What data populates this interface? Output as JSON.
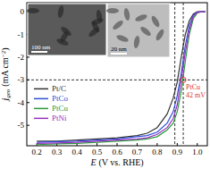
{
  "chart_data": {
    "type": "line",
    "x_label": [
      "E",
      "(V vs. RHE)"
    ],
    "y_label": [
      "j",
      "geo",
      "(mA cm",
      "−2",
      ")"
    ],
    "x": [
      0.2,
      0.3,
      0.4,
      0.5,
      0.6,
      0.7,
      0.75,
      0.8,
      0.85,
      0.88,
      0.9,
      0.92,
      0.94,
      0.96,
      0.98,
      1.0,
      1.02,
      1.04
    ],
    "series": [
      {
        "name": "Pt/C",
        "color": "#333333",
        "values": [
          -5.7,
          -5.7,
          -5.65,
          -5.6,
          -5.55,
          -5.45,
          -5.35,
          -5.1,
          -4.5,
          -3.8,
          -3.1,
          -2.0,
          -1.0,
          -0.4,
          -0.1,
          0.0,
          0.0,
          0.0
        ]
      },
      {
        "name": "PtCo",
        "color": "#3050d8",
        "values": [
          -5.75,
          -5.72,
          -5.7,
          -5.65,
          -5.6,
          -5.5,
          -5.45,
          -5.3,
          -4.9,
          -4.4,
          -3.7,
          -2.7,
          -1.5,
          -0.6,
          -0.15,
          -0.02,
          0.0,
          0.0
        ]
      },
      {
        "name": "PtCu",
        "color": "#2a9a3a",
        "values": [
          -5.85,
          -5.82,
          -5.8,
          -5.75,
          -5.7,
          -5.65,
          -5.6,
          -5.5,
          -5.2,
          -4.9,
          -4.4,
          -3.5,
          -2.2,
          -1.0,
          -0.3,
          -0.05,
          0.0,
          0.0
        ]
      },
      {
        "name": "PtNi",
        "color": "#9a30c0",
        "values": [
          -5.8,
          -5.78,
          -5.75,
          -5.7,
          -5.65,
          -5.6,
          -5.55,
          -5.4,
          -5.1,
          -4.7,
          -4.1,
          -3.0,
          -1.8,
          -0.8,
          -0.2,
          -0.03,
          0.0,
          0.0
        ]
      }
    ],
    "xlim": [
      0.15,
      1.05
    ],
    "xticks": [
      0.2,
      0.3,
      0.4,
      0.5,
      0.6,
      0.7,
      0.8,
      0.9,
      {
        "value": 1,
        "label": "1.0"
      }
    ],
    "ylim": [
      -5.9,
      0.4
    ],
    "yticks": [
      -5,
      -4,
      -3,
      -2,
      -1,
      0
    ],
    "legend": "lower left",
    "hline": -3,
    "vlines": [
      0.888,
      0.93
    ],
    "annotation": {
      "x": 0.93,
      "y": -3,
      "texts": [
        "PtCu",
        "42 mV"
      ],
      "color": "#e03030"
    },
    "insets": [
      {
        "label": "100 nm"
      },
      {
        "label": "20 nm"
      }
    ]
  }
}
